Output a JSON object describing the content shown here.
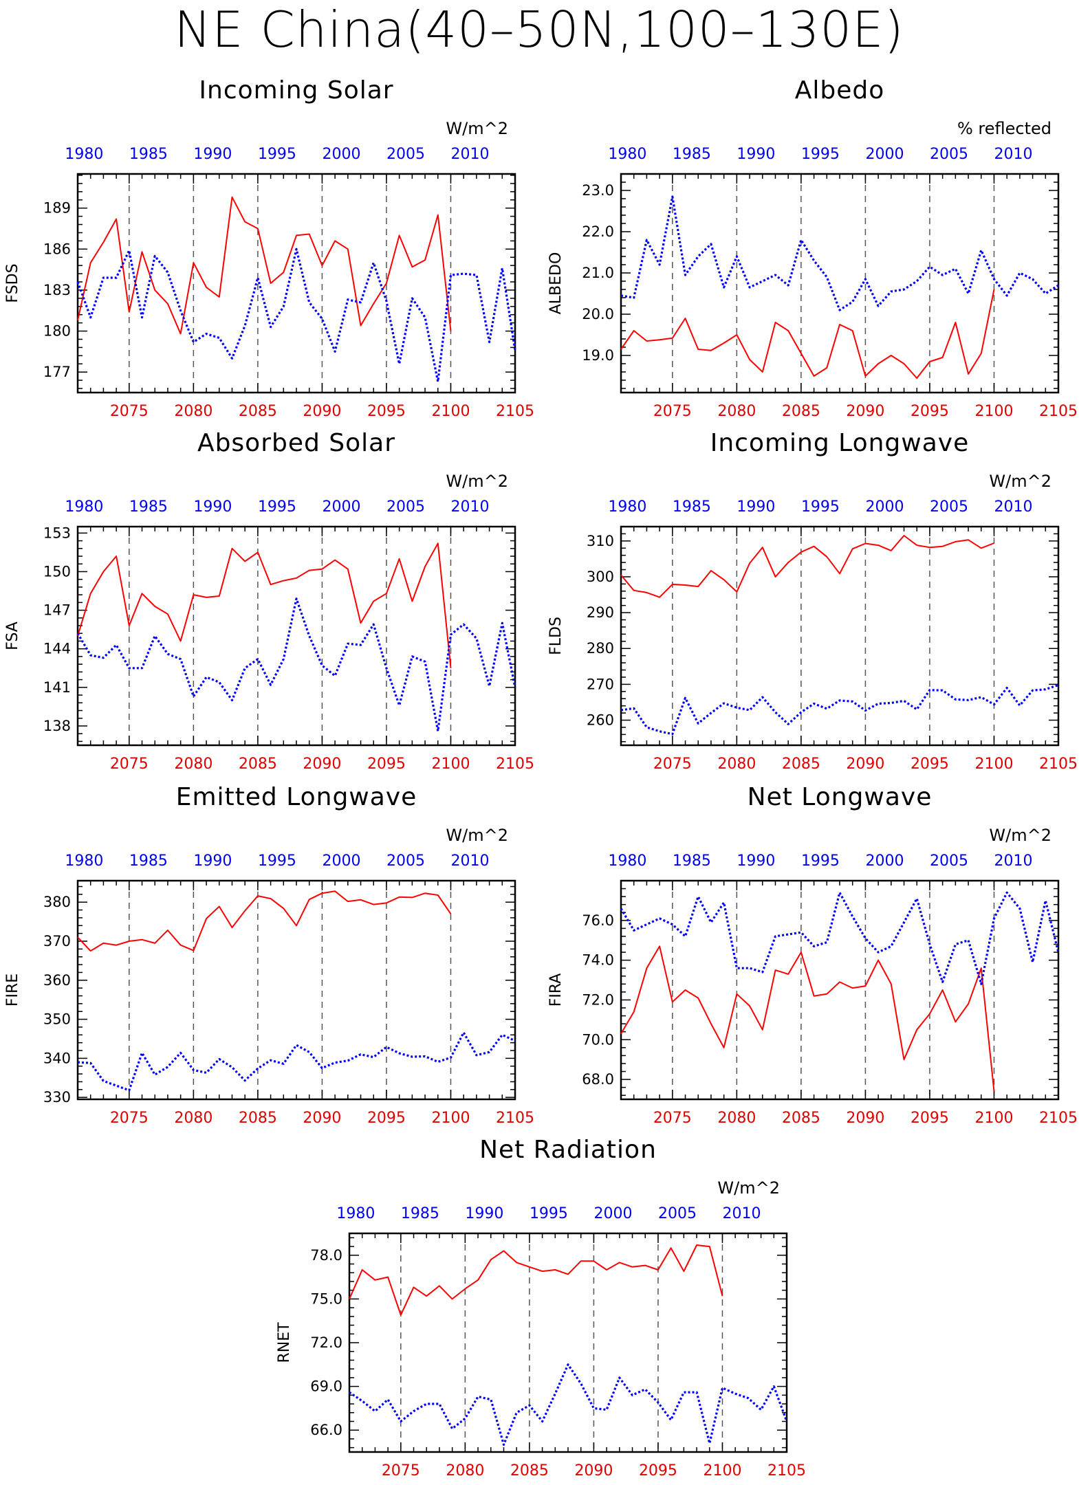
{
  "title": "NE China(40–50N,100–130E)",
  "colors": {
    "future": "#ff0000",
    "past": "#0000ff",
    "axis": "#000000",
    "refline": "#555555"
  },
  "chart_data": [
    {
      "type": "line",
      "title": "Incoming Solar",
      "ylabel": "FSDS",
      "units": "W/m^2",
      "ylim": [
        175.5,
        191.5
      ],
      "yticks": [
        "177",
        "180",
        "183",
        "186",
        "189"
      ],
      "x_bottom_ticks": [
        "2075",
        "2080",
        "2085",
        "2090",
        "2095",
        "2100",
        "2105"
      ],
      "x_top_ticks": [
        "1980",
        "1985",
        "1990",
        "1995",
        "2000",
        "2005",
        "2010"
      ],
      "xlim_bottom": [
        2071,
        2105
      ],
      "dashed_x": [
        2075,
        2080,
        2085,
        2090,
        2095,
        2100
      ],
      "series": [
        {
          "x_start": 2071,
          "values": [
            180.8,
            185.0,
            186.5,
            188.2,
            181.4,
            185.8,
            183.0,
            182.0,
            179.8,
            185.0,
            183.2,
            182.5,
            189.8,
            188.0,
            187.5,
            183.5,
            184.3,
            187.0,
            187.1,
            184.8,
            186.6,
            186.0,
            180.4,
            182.0,
            183.5,
            187.0,
            184.7,
            185.2,
            188.5,
            180.0
          ]
        },
        {
          "x_start": 2071,
          "values": [
            183.6,
            181.0,
            183.9,
            183.9,
            185.9,
            181.0,
            185.5,
            184.3,
            181.5,
            179.2,
            179.8,
            179.5,
            178.0,
            180.4,
            183.9,
            180.3,
            181.8,
            186.0,
            182.1,
            180.9,
            178.5,
            182.3,
            182.1,
            185.0,
            182.2,
            177.6,
            182.4,
            181.0,
            176.3,
            184.1,
            184.2,
            184.1,
            179.2,
            184.6,
            178.6
          ]
        }
      ]
    },
    {
      "type": "line",
      "title": "Albedo",
      "ylabel": "ALBEDO",
      "units": "% reflected",
      "ylim": [
        18.1,
        23.4
      ],
      "yticks": [
        "19.0",
        "20.0",
        "21.0",
        "22.0",
        "23.0"
      ],
      "x_bottom_ticks": [
        "2075",
        "2080",
        "2085",
        "2090",
        "2095",
        "2100",
        "2105"
      ],
      "x_top_ticks": [
        "1980",
        "1985",
        "1990",
        "1995",
        "2000",
        "2005",
        "2010"
      ],
      "xlim_bottom": [
        2071,
        2105
      ],
      "dashed_x": [
        2075,
        2080,
        2085,
        2090,
        2095,
        2100
      ],
      "series": [
        {
          "x_start": 2071,
          "values": [
            19.15,
            19.6,
            19.35,
            19.38,
            19.42,
            19.9,
            19.15,
            19.12,
            19.3,
            19.5,
            18.9,
            18.6,
            19.8,
            19.6,
            19.05,
            18.5,
            18.7,
            19.75,
            19.6,
            18.5,
            18.8,
            19.0,
            18.8,
            18.45,
            18.85,
            18.95,
            19.8,
            18.55,
            19.05,
            20.6
          ]
        },
        {
          "x_start": 2071,
          "values": [
            20.45,
            20.4,
            21.8,
            21.2,
            22.85,
            20.95,
            21.4,
            21.7,
            20.65,
            21.4,
            20.65,
            20.8,
            20.95,
            20.7,
            21.8,
            21.3,
            20.9,
            20.1,
            20.3,
            20.85,
            20.2,
            20.55,
            20.6,
            20.8,
            21.15,
            20.95,
            21.1,
            20.5,
            21.55,
            20.85,
            20.45,
            21.0,
            20.85,
            20.5,
            20.7
          ]
        }
      ]
    },
    {
      "type": "line",
      "title": "Absorbed Solar",
      "ylabel": "FSA",
      "units": "W/m^2",
      "ylim": [
        136.5,
        153.5
      ],
      "yticks": [
        "138",
        "141",
        "144",
        "147",
        "150",
        "153"
      ],
      "x_bottom_ticks": [
        "2075",
        "2080",
        "2085",
        "2090",
        "2095",
        "2100",
        "2105"
      ],
      "x_top_ticks": [
        "1980",
        "1985",
        "1990",
        "1995",
        "2000",
        "2005",
        "2010"
      ],
      "xlim_bottom": [
        2071,
        2105
      ],
      "dashed_x": [
        2075,
        2080,
        2085,
        2090,
        2095,
        2100
      ],
      "series": [
        {
          "x_start": 2071,
          "values": [
            145.0,
            148.3,
            150.0,
            151.2,
            145.8,
            148.3,
            147.3,
            146.7,
            144.6,
            148.2,
            148.0,
            148.1,
            151.8,
            150.8,
            151.5,
            149.0,
            149.3,
            149.5,
            150.1,
            150.2,
            150.9,
            150.2,
            146.0,
            147.7,
            148.3,
            151.0,
            147.7,
            150.4,
            152.2,
            142.5
          ]
        },
        {
          "x_start": 2071,
          "values": [
            145.2,
            143.5,
            143.3,
            144.3,
            142.5,
            142.5,
            145.0,
            143.6,
            143.2,
            140.3,
            141.8,
            141.4,
            140.0,
            142.5,
            143.2,
            141.2,
            143.2,
            147.9,
            145.0,
            142.7,
            141.9,
            144.4,
            144.3,
            145.9,
            142.5,
            139.6,
            143.4,
            143.0,
            137.6,
            145.1,
            145.9,
            144.8,
            141.1,
            146.0,
            141.0
          ]
        }
      ]
    },
    {
      "type": "line",
      "title": "Incoming Longwave",
      "ylabel": "FLDS",
      "units": "W/m^2",
      "ylim": [
        253,
        314
      ],
      "yticks": [
        "260",
        "270",
        "280",
        "290",
        "300",
        "310"
      ],
      "x_bottom_ticks": [
        "2075",
        "2080",
        "2085",
        "2090",
        "2095",
        "2100",
        "2105"
      ],
      "x_top_ticks": [
        "1980",
        "1985",
        "1990",
        "1995",
        "2000",
        "2005",
        "2010"
      ],
      "xlim_bottom": [
        2071,
        2105
      ],
      "dashed_x": [
        2075,
        2080,
        2085,
        2090,
        2095,
        2100
      ],
      "series": [
        {
          "x_start": 2071,
          "values": [
            300.5,
            296.2,
            295.6,
            294.3,
            297.9,
            297.7,
            297.3,
            301.7,
            299.2,
            295.8,
            303.8,
            308.2,
            300.0,
            304.0,
            306.9,
            308.5,
            305.6,
            300.9,
            307.8,
            309.3,
            308.8,
            307.3,
            311.5,
            308.8,
            308.2,
            308.5,
            309.8,
            310.3,
            308.0,
            309.4
          ]
        },
        {
          "x_start": 2071,
          "values": [
            262.8,
            263.3,
            258.0,
            256.9,
            256.1,
            266.2,
            259.1,
            262.0,
            264.7,
            263.5,
            262.8,
            266.4,
            262.2,
            258.9,
            262.2,
            264.6,
            263.2,
            265.5,
            265.2,
            262.7,
            264.6,
            264.8,
            265.4,
            263.0,
            268.4,
            268.3,
            265.8,
            265.6,
            266.4,
            264.4,
            269.0,
            264.1,
            268.3,
            268.6,
            269.8
          ]
        }
      ]
    },
    {
      "type": "line",
      "title": "Emitted Longwave",
      "ylabel": "FIRE",
      "units": "W/m^2",
      "ylim": [
        329.5,
        385.5
      ],
      "yticks": [
        "330",
        "340",
        "350",
        "360",
        "370",
        "380"
      ],
      "x_bottom_ticks": [
        "2075",
        "2080",
        "2085",
        "2090",
        "2095",
        "2100",
        "2105"
      ],
      "x_top_ticks": [
        "1980",
        "1985",
        "1990",
        "1995",
        "2000",
        "2005",
        "2010"
      ],
      "xlim_bottom": [
        2071,
        2105
      ],
      "dashed_x": [
        2075,
        2080,
        2085,
        2090,
        2095,
        2100
      ],
      "series": [
        {
          "x_start": 2071,
          "values": [
            371.0,
            367.5,
            369.5,
            369.0,
            370.0,
            370.4,
            369.5,
            372.8,
            369.0,
            367.6,
            375.8,
            378.9,
            373.5,
            377.8,
            381.6,
            380.9,
            378.4,
            374.0,
            380.7,
            382.3,
            382.8,
            380.2,
            380.6,
            379.4,
            379.8,
            381.3,
            381.2,
            382.3,
            381.8,
            377.0
          ]
        },
        {
          "x_start": 2071,
          "values": [
            339.0,
            338.8,
            334.2,
            333.0,
            331.8,
            341.4,
            335.8,
            337.8,
            341.4,
            337.0,
            336.3,
            339.8,
            337.7,
            334.3,
            337.4,
            339.5,
            338.6,
            343.4,
            341.6,
            337.5,
            338.9,
            339.4,
            341.0,
            340.3,
            342.9,
            341.3,
            340.4,
            340.5,
            339.1,
            340.2,
            346.6,
            340.8,
            341.6,
            346.0,
            344.5
          ]
        }
      ]
    },
    {
      "type": "line",
      "title": "Net Longwave",
      "ylabel": "FIRA",
      "units": "W/m^2",
      "ylim": [
        67.0,
        78.0
      ],
      "yticks": [
        "68.0",
        "70.0",
        "72.0",
        "74.0",
        "76.0"
      ],
      "x_bottom_ticks": [
        "2075",
        "2080",
        "2085",
        "2090",
        "2095",
        "2100",
        "2105"
      ],
      "x_top_ticks": [
        "1980",
        "1985",
        "1990",
        "1995",
        "2000",
        "2005",
        "2010"
      ],
      "xlim_bottom": [
        2071,
        2105
      ],
      "dashed_x": [
        2075,
        2080,
        2085,
        2090,
        2095,
        2100
      ],
      "series": [
        {
          "x_start": 2071,
          "values": [
            70.3,
            71.4,
            73.6,
            74.7,
            71.9,
            72.5,
            72.1,
            70.8,
            69.6,
            72.3,
            71.7,
            70.5,
            73.5,
            73.3,
            74.4,
            72.2,
            72.3,
            72.9,
            72.6,
            72.7,
            74.0,
            72.8,
            69.0,
            70.5,
            71.3,
            72.5,
            70.9,
            71.8,
            73.6,
            67.4
          ]
        },
        {
          "x_start": 2071,
          "values": [
            76.6,
            75.5,
            75.8,
            76.1,
            75.8,
            75.2,
            77.2,
            75.9,
            76.9,
            73.6,
            73.6,
            73.4,
            75.2,
            75.3,
            75.4,
            74.7,
            74.9,
            77.4,
            76.2,
            75.1,
            74.4,
            74.7,
            75.9,
            77.1,
            74.8,
            72.9,
            74.8,
            75.0,
            72.8,
            76.1,
            77.4,
            76.6,
            73.9,
            77.0,
            74.4
          ]
        }
      ]
    },
    {
      "type": "line",
      "title": "Net Radiation",
      "ylabel": "RNET",
      "units": "W/m^2",
      "ylim": [
        64.5,
        79.5
      ],
      "yticks": [
        "66.0",
        "69.0",
        "72.0",
        "75.0",
        "78.0"
      ],
      "x_bottom_ticks": [
        "2075",
        "2080",
        "2085",
        "2090",
        "2095",
        "2100",
        "2105"
      ],
      "x_top_ticks": [
        "1980",
        "1985",
        "1990",
        "1995",
        "2000",
        "2005",
        "2010"
      ],
      "xlim_bottom": [
        2071,
        2105
      ],
      "dashed_x": [
        2075,
        2080,
        2085,
        2090,
        2095,
        2100
      ],
      "series": [
        {
          "x_start": 2071,
          "values": [
            75.0,
            77.0,
            76.3,
            76.5,
            73.9,
            75.8,
            75.2,
            75.9,
            75.0,
            75.7,
            76.3,
            77.7,
            78.3,
            77.5,
            77.2,
            76.9,
            77.0,
            76.7,
            77.6,
            77.6,
            77.0,
            77.5,
            77.2,
            77.3,
            77.0,
            78.5,
            76.9,
            78.7,
            78.6,
            75.2
          ]
        },
        {
          "x_start": 2071,
          "values": [
            68.6,
            68.0,
            67.3,
            68.1,
            66.6,
            67.3,
            67.8,
            67.8,
            66.1,
            66.8,
            68.3,
            68.1,
            65.0,
            67.2,
            67.7,
            66.6,
            68.5,
            70.5,
            69.2,
            67.5,
            67.4,
            69.6,
            68.4,
            68.8,
            67.9,
            66.7,
            68.6,
            68.6,
            65.1,
            68.9,
            68.5,
            68.2,
            67.4,
            69.0,
            66.6
          ]
        }
      ]
    }
  ]
}
